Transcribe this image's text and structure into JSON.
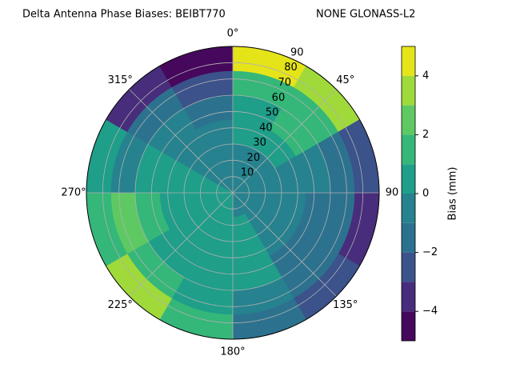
{
  "chart_data": {
    "type": "polar-contour",
    "title": "Delta Antenna Phase Biases: BEIBT770",
    "title_right": "NONE GLONASS-L2",
    "theta_direction": "clockwise",
    "theta_zero": "N",
    "thetaticks": [
      {
        "value": 0,
        "label": "0°"
      },
      {
        "value": 45,
        "label": "45°"
      },
      {
        "value": 90,
        "label": "90"
      },
      {
        "value": 135,
        "label": "135°"
      },
      {
        "value": 180,
        "label": "180°"
      },
      {
        "value": 225,
        "label": "225°"
      },
      {
        "value": 270,
        "label": "270°"
      },
      {
        "value": 315,
        "label": "315°"
      }
    ],
    "rlim": [
      0,
      90
    ],
    "rticks": [
      10,
      20,
      30,
      40,
      50,
      60,
      70,
      80,
      90
    ],
    "grid": true,
    "theta_bins": [
      0,
      30,
      60,
      90,
      120,
      150,
      180,
      210,
      240,
      270,
      300,
      330,
      360
    ],
    "r_bins": [
      0,
      15,
      30,
      45,
      60,
      75,
      90
    ],
    "z": [
      [
        -0.5,
        -0.5,
        0.5,
        0.5,
        1.5,
        4.5
      ],
      [
        -0.5,
        -0.5,
        0.5,
        1.5,
        1.5,
        3.5
      ],
      [
        -0.5,
        -0.5,
        -0.5,
        -0.5,
        -1.5,
        -2.5
      ],
      [
        -0.5,
        -0.5,
        -0.5,
        -1.5,
        -1.5,
        -3.5
      ],
      [
        -0.5,
        -0.5,
        -0.5,
        -1.5,
        -1.5,
        -2.5
      ],
      [
        -0.5,
        0.5,
        0.5,
        0.5,
        -0.5,
        -1.5
      ],
      [
        0.5,
        0.5,
        0.5,
        0.5,
        0.5,
        1.5
      ],
      [
        0.5,
        0.5,
        0.5,
        0.5,
        1.5,
        3.5
      ],
      [
        0.5,
        0.5,
        0.5,
        1.5,
        2.5,
        1.5
      ],
      [
        0.5,
        0.5,
        0.5,
        0.5,
        -0.5,
        0.5
      ],
      [
        -0.5,
        -0.5,
        -0.5,
        -0.5,
        -1.5,
        -3.5
      ],
      [
        -0.5,
        -0.5,
        -0.5,
        -1.5,
        -2.5,
        -4.5
      ],
      [
        -0.5,
        -0.5,
        -0.5,
        -0.5,
        -1.5,
        -1.5
      ]
    ],
    "levels": [
      -5,
      -4,
      -3,
      -2,
      -1,
      0,
      1,
      2,
      3,
      4,
      5
    ],
    "colors": [
      "#46085c",
      "#472d7b",
      "#3b528b",
      "#2c728e",
      "#26828e",
      "#1f9e89",
      "#35b779",
      "#5ec962",
      "#9fda3a",
      "#e5e419"
    ],
    "colorbar_label": "Bias (mm)",
    "colorbar_ticks": [
      {
        "value": -4,
        "label": "−4"
      },
      {
        "value": -2,
        "label": "−2"
      },
      0,
      2,
      4
    ]
  }
}
